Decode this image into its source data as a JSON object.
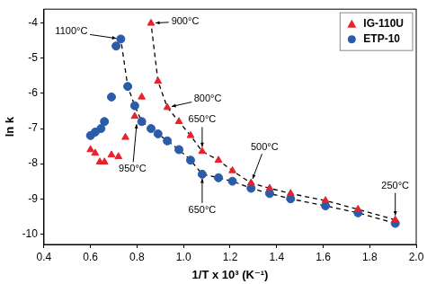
{
  "chart_data": {
    "type": "scatter",
    "x_label": "1/T x 10³ (K⁻¹)",
    "y_label": "ln k",
    "xlim": [
      0.4,
      2.0
    ],
    "xticks": [
      0.4,
      0.6,
      0.8,
      {
        "value": 1.0,
        "label": "1.0"
      },
      1.2,
      1.4,
      1.6,
      1.8,
      {
        "value": 2.0,
        "label": "2.0"
      }
    ],
    "ylim": [
      -10.3,
      -3.6
    ],
    "yticks": [
      -10,
      -9,
      -8,
      -7,
      -6,
      -5,
      -4
    ],
    "grid": false,
    "legend": "upper right",
    "series": [
      {
        "name": "IG-110U",
        "color": "#e6232c",
        "marker": "triangle",
        "x": [
          1.91,
          1.75,
          1.61,
          1.46,
          1.37,
          1.29,
          1.21,
          1.15,
          1.08,
          1.03,
          0.98,
          0.93,
          0.89,
          0.86,
          0.82,
          0.79,
          0.75,
          0.72,
          0.69,
          0.66,
          0.64,
          0.62,
          0.6
        ],
        "values": [
          -9.6,
          -9.3,
          -9.05,
          -8.85,
          -8.7,
          -8.55,
          -8.2,
          -7.9,
          -7.65,
          -7.2,
          -6.8,
          -6.4,
          -5.65,
          -4.0,
          -6.1,
          -6.65,
          -7.25,
          -7.8,
          -7.75,
          -7.95,
          -7.95,
          -7.7,
          -7.6
        ]
      },
      {
        "name": "ETP-10",
        "color": "#2a5caa",
        "marker": "circle",
        "x": [
          1.91,
          1.75,
          1.61,
          1.46,
          1.37,
          1.29,
          1.21,
          1.15,
          1.08,
          1.03,
          0.98,
          0.93,
          0.89,
          0.86,
          0.82,
          0.79,
          0.76,
          0.73,
          0.71,
          0.69,
          0.66,
          0.645,
          0.62,
          0.6
        ],
        "values": [
          -9.7,
          -9.4,
          -9.2,
          -9.0,
          -8.85,
          -8.7,
          -8.5,
          -8.4,
          -8.3,
          -7.9,
          -7.6,
          -7.35,
          -7.15,
          -7.0,
          -6.8,
          -6.35,
          -5.8,
          -4.45,
          -4.65,
          -6.1,
          -6.8,
          -7.0,
          -7.1,
          -7.2
        ]
      },
      {
        "type": "line",
        "line_style": "dashed",
        "color": "#000000",
        "x": [
          1.91,
          1.75,
          1.61,
          1.46,
          1.37,
          1.29,
          1.21,
          1.15,
          1.08,
          1.03,
          0.98,
          0.93,
          0.89,
          0.86
        ],
        "values": [
          -9.6,
          -9.3,
          -9.05,
          -8.85,
          -8.7,
          -8.55,
          -8.2,
          -7.9,
          -7.65,
          -7.2,
          -6.8,
          -6.4,
          -5.65,
          -4.0
        ]
      },
      {
        "type": "line",
        "line_style": "dashed",
        "color": "#000000",
        "x": [
          1.91,
          1.75,
          1.61,
          1.46,
          1.37,
          1.29,
          1.21,
          1.15,
          1.08,
          1.03,
          0.98,
          0.93,
          0.89,
          0.86,
          0.82,
          0.79,
          0.76,
          0.73
        ],
        "values": [
          -9.7,
          -9.4,
          -9.2,
          -9.0,
          -8.85,
          -8.7,
          -8.5,
          -8.4,
          -8.3,
          -7.9,
          -7.6,
          -7.35,
          -7.15,
          -7.0,
          -6.8,
          -6.35,
          -5.8,
          -4.45
        ]
      }
    ],
    "annotations": [
      {
        "text": "250°C",
        "x": 1.91,
        "y": -9.6
      },
      {
        "text": "500°C",
        "x": 1.29,
        "y": -8.55
      },
      {
        "text": "650°C",
        "x": 1.08,
        "y": -7.65
      },
      {
        "text": "650°C",
        "x": 1.08,
        "y": -8.3
      },
      {
        "text": "800°C",
        "x": 0.93,
        "y": -6.4
      },
      {
        "text": "900°C",
        "x": 0.86,
        "y": -4.0
      },
      {
        "text": "950°C",
        "x": 0.8,
        "y": -6.75
      },
      {
        "text": "1100°C",
        "x": 0.73,
        "y": -4.45
      }
    ]
  }
}
